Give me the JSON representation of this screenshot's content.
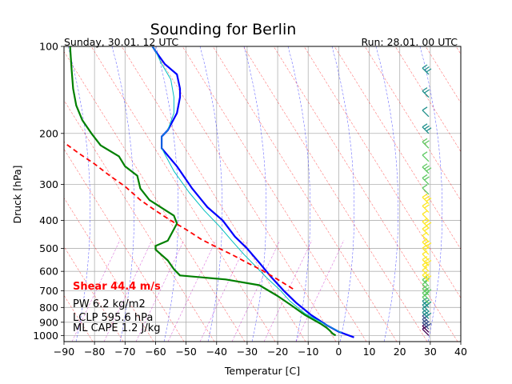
{
  "chart_data": {
    "type": "line",
    "title": "Sounding for Berlin",
    "subtitle_left": "Sunday, 30.01. 12 UTC",
    "subtitle_right": "Run: 28.01. 00 UTC",
    "xlabel": "Temperatur [C]",
    "ylabel": "Druck [hPa]",
    "xlim": [
      -90,
      40
    ],
    "ylim": [
      1050,
      100
    ],
    "y_scale": "log",
    "grid": true,
    "x_ticks": [
      -90,
      -80,
      -70,
      -60,
      -50,
      -40,
      -30,
      -20,
      -10,
      0,
      10,
      20,
      30,
      40
    ],
    "y_ticks": [
      100,
      200,
      300,
      400,
      500,
      600,
      700,
      800,
      900,
      1000
    ],
    "series": [
      {
        "role": "temperature",
        "color": "#0000ff",
        "points": [
          [
            5,
            1015
          ],
          [
            0,
            970
          ],
          [
            -4,
            920
          ],
          [
            -9,
            850
          ],
          [
            -14,
            770
          ],
          [
            -18,
            700
          ],
          [
            -22,
            630
          ],
          [
            -26,
            560
          ],
          [
            -30,
            500
          ],
          [
            -34,
            455
          ],
          [
            -38,
            400
          ],
          [
            -43,
            360
          ],
          [
            -48,
            310
          ],
          [
            -53,
            260
          ],
          [
            -58,
            225
          ],
          [
            -58,
            205
          ],
          [
            -56,
            195
          ],
          [
            -53,
            170
          ],
          [
            -52,
            150
          ],
          [
            -52,
            140
          ],
          [
            -53,
            125
          ],
          [
            -57,
            115
          ],
          [
            -60,
            104
          ],
          [
            -61,
            100
          ]
        ]
      },
      {
        "role": "dewpoint",
        "color": "#008000",
        "points": [
          [
            -1,
            1000
          ],
          [
            -2,
            985
          ],
          [
            -3,
            960
          ],
          [
            -4,
            940
          ],
          [
            -6,
            910
          ],
          [
            -11,
            850
          ],
          [
            -16,
            780
          ],
          [
            -20,
            730
          ],
          [
            -26,
            670
          ],
          [
            -37,
            640
          ],
          [
            -52,
            620
          ],
          [
            -54,
            590
          ],
          [
            -56,
            550
          ],
          [
            -60,
            505
          ],
          [
            -60,
            490
          ],
          [
            -56,
            470
          ],
          [
            -53,
            410
          ],
          [
            -54,
            385
          ],
          [
            -62,
            340
          ],
          [
            -65,
            310
          ],
          [
            -66,
            280
          ],
          [
            -70,
            260
          ],
          [
            -72,
            240
          ],
          [
            -78,
            220
          ],
          [
            -81,
            200
          ],
          [
            -84,
            180
          ],
          [
            -86,
            160
          ],
          [
            -87,
            140
          ],
          [
            -87.5,
            120
          ],
          [
            -88,
            100
          ]
        ]
      },
      {
        "role": "wetbulb",
        "color": "#00bfbf",
        "points": [
          [
            1,
            980
          ],
          [
            -4,
            920
          ],
          [
            -11,
            840
          ],
          [
            -16,
            760
          ],
          [
            -19,
            700
          ],
          [
            -23,
            640
          ],
          [
            -27,
            580
          ],
          [
            -31,
            525
          ],
          [
            -35,
            470
          ],
          [
            -39,
            420
          ],
          [
            -44,
            370
          ],
          [
            -49,
            320
          ],
          [
            -54,
            270
          ],
          [
            -58,
            225
          ],
          [
            -58,
            205
          ],
          [
            -56,
            195
          ],
          [
            -54,
            170
          ],
          [
            -54,
            150
          ],
          [
            -55,
            130
          ],
          [
            -58,
            115
          ],
          [
            -60,
            104
          ],
          [
            -61,
            100
          ]
        ]
      },
      {
        "role": "parcel",
        "color": "#ff0000",
        "points": [
          [
            -15,
            690
          ],
          [
            -20,
            640
          ],
          [
            -25,
            596
          ],
          [
            -30,
            560
          ],
          [
            -35,
            525
          ],
          [
            -40,
            495
          ],
          [
            -45,
            465
          ],
          [
            -50,
            430
          ],
          [
            -55,
            400
          ],
          [
            -60,
            370
          ],
          [
            -65,
            340
          ],
          [
            -70,
            305
          ],
          [
            -75,
            280
          ],
          [
            -80,
            255
          ],
          [
            -85,
            235
          ],
          [
            -90,
            215
          ]
        ]
      }
    ],
    "wind_colors": [
      "#440154",
      "#3b528b",
      "#21918c",
      "#5ec962",
      "#fde725"
    ],
    "annotations": {
      "shear": "Shear 44.4 m/s",
      "pw": "PW 6.2 kg/m2",
      "lclp": "LCLP 595.6 hPa",
      "cape": "ML CAPE 1.2 J/kg"
    }
  }
}
